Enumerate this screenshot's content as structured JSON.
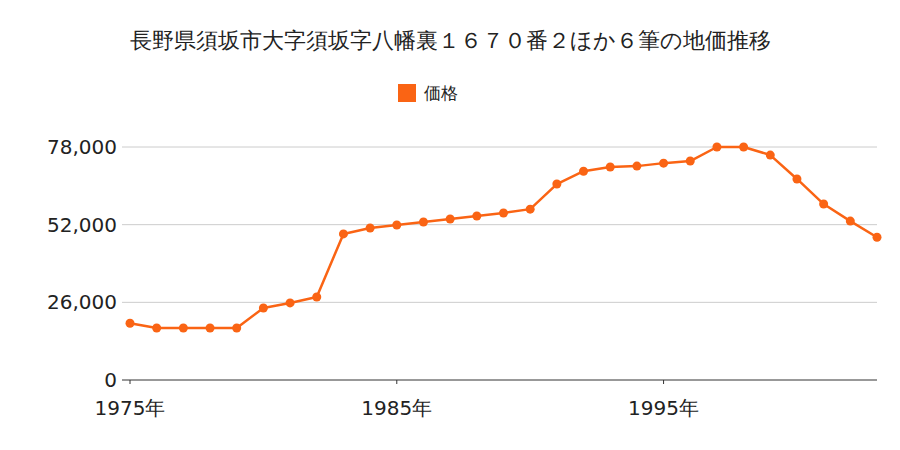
{
  "chart_data": {
    "type": "line",
    "title": "長野県須坂市大字須坂字八幡裏１６７０番２ほか６筆の地価推移",
    "x": [
      1975,
      1976,
      1977,
      1978,
      1979,
      1980,
      1981,
      1982,
      1983,
      1984,
      1985,
      1986,
      1987,
      1988,
      1989,
      1990,
      1991,
      1992,
      1993,
      1994,
      1995,
      1996,
      1997,
      1998,
      1999,
      2000,
      2001,
      2002,
      2003
    ],
    "series": [
      {
        "name": "価格",
        "color": "#fa6414",
        "marker": "circle",
        "values": [
          19000,
          17400,
          17400,
          17400,
          17400,
          24100,
          25800,
          27800,
          48900,
          50900,
          51900,
          52900,
          53900,
          54900,
          55900,
          57200,
          65600,
          69900,
          71300,
          71600,
          72600,
          73300,
          78000,
          78000,
          75300,
          67300,
          58900,
          53200,
          47800
        ]
      }
    ],
    "xlim": [
      1975,
      2003
    ],
    "xticks": [
      {
        "value": 1975,
        "label": "1975年"
      },
      {
        "value": 1985,
        "label": "1985年"
      },
      {
        "value": 1995,
        "label": "1995年"
      }
    ],
    "ylim": [
      0,
      78000
    ],
    "yticks": [
      0,
      {
        "value": 26000,
        "label": "26,000"
      },
      {
        "value": 52000,
        "label": "52,000"
      },
      {
        "value": 78000,
        "label": "78,000"
      }
    ],
    "grid": true,
    "legend": "top"
  }
}
